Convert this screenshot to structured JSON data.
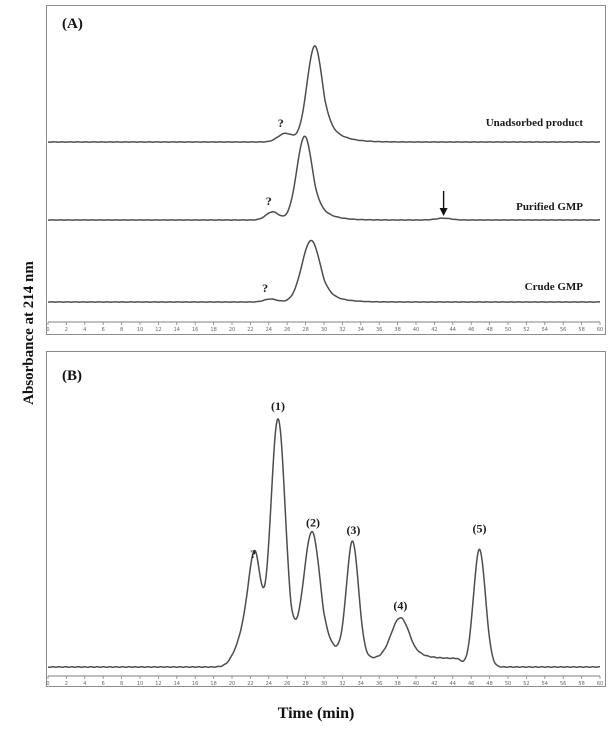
{
  "chart_data": [
    {
      "type": "line",
      "panel_label": "(A)",
      "ylabel": "Absorbance at 214 nm",
      "xlim": [
        0,
        60
      ],
      "x_ticks": [
        0,
        2,
        4,
        6,
        8,
        10,
        12,
        14,
        16,
        18,
        20,
        22,
        24,
        26,
        28,
        30,
        32,
        34,
        36,
        38,
        40,
        42,
        44,
        46,
        48,
        50,
        52,
        54,
        56,
        58,
        60
      ],
      "series": [
        {
          "name": "Unadsorbed product",
          "baseline": 0,
          "peaks": [
            {
              "x": 25.8,
              "height": 0.09,
              "width": 0.8
            },
            {
              "x": 29.0,
              "height": 1.0,
              "width": 0.85,
              "tail": 1.4
            }
          ],
          "annotations": [
            {
              "text": "?",
              "x": 25.3
            }
          ]
        },
        {
          "name": "Purified GMP",
          "baseline": 0,
          "peaks": [
            {
              "x": 24.4,
              "height": 0.09,
              "width": 0.7
            },
            {
              "x": 27.9,
              "height": 0.92,
              "width": 0.85,
              "tail": 1.3
            },
            {
              "x": 43.0,
              "height": 0.02,
              "width": 0.8
            }
          ],
          "annotations": [
            {
              "text": "?",
              "x": 24.0
            }
          ],
          "arrow_x": 43.0
        },
        {
          "name": "Crude GMP",
          "baseline": 0,
          "peaks": [
            {
              "x": 24.2,
              "height": 0.04,
              "width": 0.7
            },
            {
              "x": 28.6,
              "height": 0.82,
              "width": 1.0,
              "tail": 1.4
            }
          ],
          "annotations": [
            {
              "text": "?",
              "x": 23.6
            }
          ]
        }
      ]
    },
    {
      "type": "line",
      "panel_label": "(B)",
      "xlabel": "Time (min)",
      "xlim": [
        0,
        60
      ],
      "x_ticks": [
        0,
        2,
        4,
        6,
        8,
        10,
        12,
        14,
        16,
        18,
        20,
        22,
        24,
        26,
        28,
        30,
        32,
        34,
        36,
        38,
        40,
        42,
        44,
        46,
        48,
        50,
        52,
        54,
        56,
        58,
        60
      ],
      "series": [
        {
          "name": "",
          "peaks": [
            {
              "x": 21.2,
              "height": 0.12,
              "width": 0.9
            },
            {
              "x": 22.5,
              "height": 0.4,
              "width": 0.65
            },
            {
              "x": 25.0,
              "height": 1.0,
              "width": 0.8,
              "tail": 0.9
            },
            {
              "x": 28.7,
              "height": 0.52,
              "width": 0.9,
              "tail": 1.3
            },
            {
              "x": 33.1,
              "height": 0.48,
              "width": 0.65
            },
            {
              "x": 38.3,
              "height": 0.17,
              "width": 1.0,
              "tail": 1.3
            },
            {
              "x": 46.9,
              "height": 0.49,
              "width": 0.65
            }
          ],
          "offset_start": 20.5,
          "offset_value": 0.0
        }
      ],
      "annotations": [
        {
          "text": "?",
          "x": 22.3,
          "y": 0.455
        },
        {
          "text": "(1)",
          "x": 25.0,
          "y": 1.07
        },
        {
          "text": "(2)",
          "x": 28.8,
          "y": 0.585
        },
        {
          "text": "(3)",
          "x": 33.2,
          "y": 0.555
        },
        {
          "text": "(4)",
          "x": 38.3,
          "y": 0.24
        },
        {
          "text": "(5)",
          "x": 46.9,
          "y": 0.56
        }
      ]
    }
  ]
}
